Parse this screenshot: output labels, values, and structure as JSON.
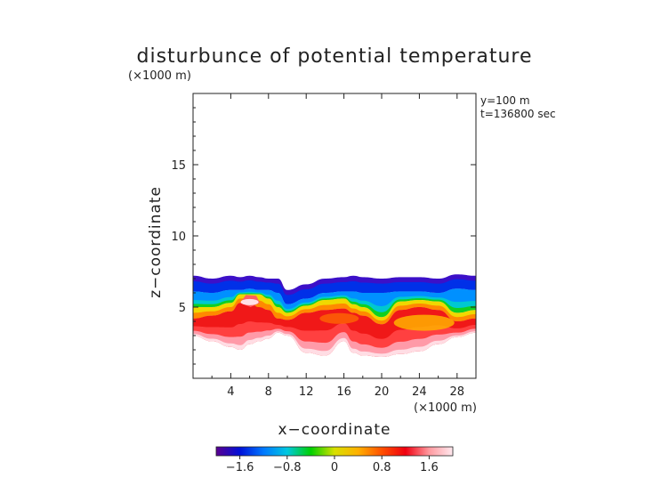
{
  "chart_data": {
    "type": "heatmap",
    "title": "disturbunce of potential temperature",
    "xlabel": "x−coordinate",
    "ylabel": "z−coordinate",
    "x_unit": "(×1000 m)",
    "y_unit": "(×1000 m)",
    "xlim": [
      0,
      30
    ],
    "ylim": [
      0,
      20
    ],
    "x_ticks": [
      4,
      8,
      12,
      16,
      20,
      24,
      28
    ],
    "x_tick_labels": [
      "4",
      "8",
      "12",
      "16",
      "20",
      "24",
      "28"
    ],
    "y_ticks": [
      5,
      10,
      15
    ],
    "y_tick_labels": [
      "5",
      "10",
      "15"
    ],
    "annotations": [
      "y=100  m",
      "t=136800 sec"
    ],
    "colorbar": {
      "range": [
        -2.0,
        2.0
      ],
      "ticks": [
        -1.6,
        -0.8,
        0,
        0.8,
        1.6
      ],
      "tick_labels": [
        "−1.6",
        "−0.8",
        "0",
        "0.8",
        "1.6"
      ],
      "colors": [
        "#5a0090",
        "#0010d8",
        "#0078ff",
        "#00c8e0",
        "#00d000",
        "#d8e000",
        "#ffb000",
        "#ff5000",
        "#f00010",
        "#ff9aa0",
        "#ffe8ee"
      ]
    },
    "field_profiles": {
      "x": [
        0,
        2,
        4,
        5,
        6,
        7,
        8,
        9,
        10,
        12,
        14,
        16,
        17,
        18,
        20,
        22,
        24,
        26,
        28,
        30
      ],
      "top": [
        7.2,
        7.0,
        7.2,
        7.1,
        7.2,
        7.1,
        7.0,
        7.0,
        6.2,
        6.6,
        7.0,
        7.1,
        7.2,
        7.1,
        7.0,
        7.1,
        7.1,
        7.0,
        7.3,
        7.2
      ],
      "mid": [
        6.1,
        6.0,
        6.2,
        6.2,
        6.3,
        6.2,
        6.2,
        6.0,
        5.2,
        5.6,
        6.0,
        6.1,
        6.1,
        6.0,
        6.0,
        6.1,
        6.1,
        6.0,
        6.3,
        6.2
      ],
      "green": [
        5.0,
        5.0,
        5.3,
        5.9,
        5.9,
        5.9,
        5.6,
        5.0,
        4.6,
        5.1,
        5.5,
        5.6,
        5.2,
        5.0,
        4.3,
        5.4,
        5.5,
        5.4,
        4.6,
        4.8
      ],
      "red_top": [
        4.2,
        4.4,
        4.7,
        5.3,
        5.3,
        5.0,
        4.8,
        4.2,
        4.1,
        4.6,
        4.8,
        4.9,
        4.6,
        4.4,
        3.8,
        4.8,
        5.0,
        4.8,
        4.0,
        4.2
      ],
      "bottom": [
        3.0,
        2.6,
        2.2,
        2.0,
        2.4,
        2.6,
        2.8,
        3.2,
        3.0,
        1.8,
        1.6,
        2.6,
        1.8,
        1.6,
        1.5,
        1.7,
        1.9,
        2.4,
        2.9,
        3.2
      ]
    },
    "grid": false,
    "legend": "bottom"
  }
}
